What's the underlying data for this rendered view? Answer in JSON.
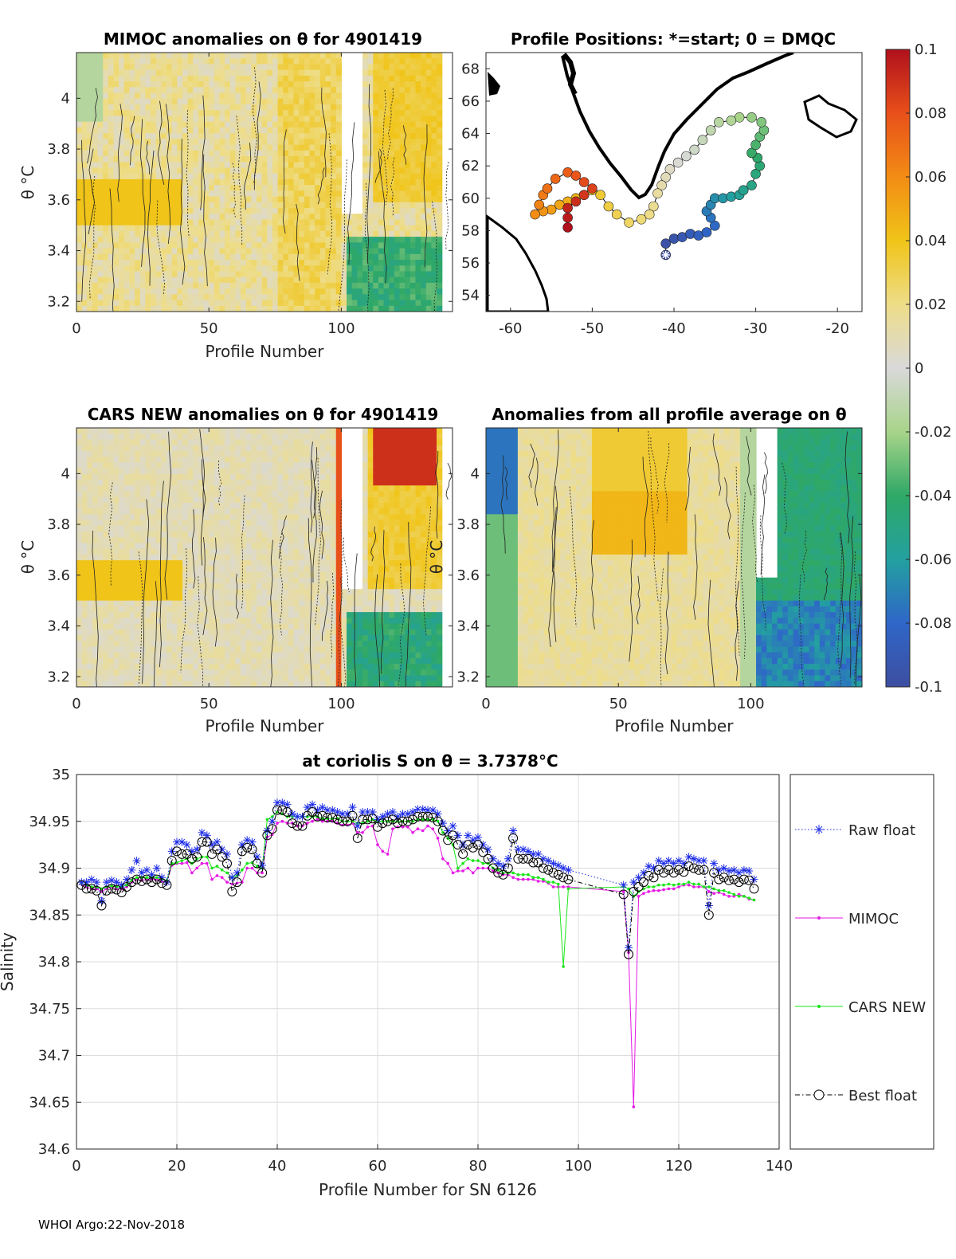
{
  "chart_data": [
    {
      "id": "mimoc",
      "type": "heatmap",
      "title": "MIMOC anomalies on θ  for 4901419",
      "xlabel": "Profile Number",
      "ylabel": "θ °C",
      "xlim": [
        0,
        142
      ],
      "ylim": [
        3.16,
        4.18
      ],
      "xticks": [
        "0",
        "50",
        "100"
      ],
      "yticks": [
        "3.2",
        "3.4",
        "3.6",
        "3.8",
        "4"
      ]
    },
    {
      "id": "positions",
      "type": "scatter",
      "title": "Profile Positions: *=start; 0 = DMQC",
      "xlim": [
        -63,
        -17
      ],
      "ylim": [
        53,
        69
      ],
      "xticks": [
        "-60",
        "-50",
        "-40",
        "-30",
        "-20"
      ],
      "yticks": [
        "54",
        "56",
        "58",
        "60",
        "62",
        "64",
        "66",
        "68"
      ],
      "start": [
        -41,
        56.5
      ]
    },
    {
      "id": "cars",
      "type": "heatmap",
      "title": "CARS NEW anomalies on θ for 4901419",
      "xlabel": "Profile Number",
      "ylabel": "θ °C",
      "xlim": [
        0,
        142
      ],
      "ylim": [
        3.16,
        4.18
      ],
      "xticks": [
        "0",
        "50",
        "100"
      ],
      "yticks": [
        "3.2",
        "3.4",
        "3.6",
        "3.8",
        "4"
      ]
    },
    {
      "id": "allavg",
      "type": "heatmap",
      "title": "Anomalies from all profile average on θ",
      "xlabel": "Profile Number",
      "ylabel": "θ °C",
      "xlim": [
        0,
        142
      ],
      "ylim": [
        3.16,
        4.18
      ],
      "xticks": [
        "0",
        "50",
        "100"
      ],
      "yticks": [
        "3.2",
        "3.4",
        "3.6",
        "3.8",
        "4"
      ]
    },
    {
      "id": "colorbar",
      "type": "colorbar",
      "range": [
        -0.1,
        0.1
      ],
      "ticks": [
        "0.1",
        "0.08",
        "0.06",
        "0.04",
        "0.02",
        "0",
        "-0.02",
        "-0.04",
        "-0.06",
        "-0.08",
        "-0.1"
      ]
    },
    {
      "id": "salinity",
      "type": "line",
      "title": "at coriolis S on θ = 3.7378°C",
      "xlabel": "Profile Number for SN 6126",
      "ylabel": "Salinity",
      "xlim": [
        0,
        140
      ],
      "ylim": [
        34.6,
        35
      ],
      "xticks": [
        "0",
        "20",
        "40",
        "60",
        "80",
        "100",
        "120",
        "140"
      ],
      "yticks": [
        "34.6",
        "34.65",
        "34.7",
        "34.75",
        "34.8",
        "34.85",
        "34.9",
        "34.95",
        "35"
      ],
      "x": [
        1,
        2,
        3,
        4,
        5,
        6,
        7,
        8,
        9,
        10,
        11,
        12,
        13,
        14,
        15,
        16,
        17,
        18,
        19,
        20,
        21,
        22,
        23,
        24,
        25,
        26,
        27,
        28,
        29,
        30,
        31,
        32,
        33,
        34,
        35,
        36,
        37,
        38,
        39,
        40,
        41,
        42,
        43,
        44,
        45,
        46,
        47,
        48,
        49,
        50,
        51,
        52,
        53,
        54,
        55,
        56,
        57,
        58,
        59,
        60,
        61,
        62,
        63,
        64,
        65,
        66,
        67,
        68,
        69,
        70,
        71,
        72,
        73,
        74,
        75,
        76,
        77,
        78,
        79,
        80,
        81,
        82,
        83,
        84,
        85,
        86,
        87,
        88,
        89,
        90,
        91,
        92,
        93,
        94,
        95,
        96,
        97,
        98,
        109,
        110,
        111,
        112,
        113,
        114,
        115,
        116,
        117,
        118,
        119,
        120,
        121,
        122,
        123,
        124,
        125,
        126,
        127,
        128,
        129,
        130,
        131,
        132,
        133,
        134,
        135
      ],
      "series": [
        {
          "name": "Raw float",
          "color": "#1f2ee6",
          "marker": "star",
          "values": [
            34.885,
            34.885,
            34.888,
            34.885,
            34.865,
            34.885,
            34.887,
            34.885,
            34.882,
            34.888,
            34.898,
            34.908,
            34.895,
            34.898,
            34.893,
            34.9,
            34.89,
            34.885,
            34.918,
            34.928,
            34.928,
            34.925,
            34.918,
            34.92,
            34.938,
            34.935,
            34.925,
            34.928,
            34.92,
            34.915,
            34.89,
            34.895,
            34.925,
            34.93,
            34.928,
            34.912,
            34.903,
            34.94,
            34.95,
            34.97,
            34.97,
            34.968,
            34.958,
            34.955,
            34.955,
            34.965,
            34.968,
            34.962,
            34.965,
            34.962,
            34.962,
            34.96,
            34.958,
            34.958,
            34.965,
            34.945,
            34.96,
            34.96,
            34.96,
            34.952,
            34.955,
            34.958,
            34.96,
            34.955,
            34.958,
            34.958,
            34.96,
            34.963,
            34.963,
            34.962,
            34.962,
            34.958,
            34.948,
            34.94,
            34.945,
            34.935,
            34.925,
            34.935,
            34.93,
            34.933,
            34.925,
            34.92,
            34.91,
            34.905,
            34.902,
            34.91,
            34.94,
            34.92,
            34.92,
            34.918,
            34.915,
            34.915,
            34.91,
            34.908,
            34.905,
            34.903,
            34.9,
            34.898,
            34.882,
            34.815,
            34.885,
            34.89,
            34.895,
            34.902,
            34.9,
            34.908,
            34.905,
            34.908,
            34.905,
            34.908,
            34.905,
            34.912,
            34.91,
            34.908,
            34.908,
            34.86,
            34.905,
            34.898,
            34.9,
            34.897,
            34.898,
            34.895,
            34.898,
            34.897,
            34.888
          ]
        },
        {
          "name": "MIMOC",
          "color": "#e619e6",
          "marker": "dot",
          "values": [
            34.883,
            34.88,
            34.878,
            34.878,
            34.875,
            34.878,
            34.88,
            34.878,
            34.878,
            34.88,
            34.885,
            34.888,
            34.887,
            34.888,
            34.888,
            34.888,
            34.886,
            34.885,
            34.903,
            34.905,
            34.905,
            34.906,
            34.895,
            34.9,
            34.905,
            34.905,
            34.888,
            34.892,
            34.89,
            34.885,
            34.883,
            34.884,
            34.885,
            34.9,
            34.9,
            34.895,
            34.895,
            34.933,
            34.936,
            34.948,
            34.95,
            34.948,
            34.948,
            34.945,
            34.945,
            34.948,
            34.95,
            34.952,
            34.95,
            34.95,
            34.95,
            34.948,
            34.946,
            34.946,
            34.948,
            34.938,
            34.938,
            34.944,
            34.945,
            34.925,
            34.918,
            34.915,
            34.942,
            34.944,
            34.944,
            34.944,
            34.938,
            34.942,
            34.94,
            34.945,
            34.942,
            34.932,
            34.91,
            34.905,
            34.895,
            34.897,
            34.897,
            34.9,
            34.895,
            34.9,
            34.9,
            34.9,
            34.897,
            34.895,
            34.893,
            34.893,
            34.89,
            34.888,
            34.888,
            34.888,
            34.888,
            34.886,
            34.886,
            34.884,
            34.88,
            34.88,
            34.88,
            34.88,
            34.875,
            34.81,
            34.645,
            34.87,
            34.873,
            34.875,
            34.876,
            34.876,
            34.877,
            34.878,
            34.878,
            34.88,
            34.882,
            34.882,
            34.88,
            34.88,
            34.88,
            34.875,
            34.873,
            34.874,
            34.872,
            34.87,
            34.87,
            34.872,
            34.87,
            34.867,
            34.866
          ]
        },
        {
          "name": "CARS NEW",
          "color": "#19e619",
          "marker": "dot",
          "values": [
            34.884,
            34.882,
            34.88,
            34.88,
            34.878,
            34.88,
            34.881,
            34.88,
            34.88,
            34.882,
            34.887,
            34.89,
            34.89,
            34.89,
            34.89,
            34.89,
            34.888,
            34.887,
            34.905,
            34.906,
            34.908,
            34.91,
            34.905,
            34.91,
            34.912,
            34.912,
            34.9,
            34.902,
            34.898,
            34.895,
            34.89,
            34.892,
            34.898,
            34.905,
            34.906,
            34.902,
            34.9,
            34.952,
            34.955,
            34.96,
            34.958,
            34.955,
            34.955,
            34.955,
            34.955,
            34.955,
            34.955,
            34.955,
            34.953,
            34.953,
            34.953,
            34.953,
            34.95,
            34.95,
            34.95,
            34.948,
            34.948,
            34.95,
            34.952,
            34.95,
            34.95,
            34.95,
            34.95,
            34.95,
            34.95,
            34.95,
            34.95,
            34.952,
            34.952,
            34.952,
            34.952,
            34.95,
            34.938,
            34.932,
            34.925,
            34.9,
            34.905,
            34.91,
            34.908,
            34.908,
            34.905,
            34.905,
            34.9,
            34.898,
            34.895,
            34.895,
            34.895,
            34.893,
            34.893,
            34.893,
            34.89,
            34.89,
            34.888,
            34.885,
            34.885,
            34.883,
            34.795,
            34.878,
            34.88,
            34.878,
            34.87,
            34.875,
            34.878,
            34.88,
            34.88,
            34.882,
            34.882,
            34.883,
            34.882,
            34.883,
            34.883,
            34.885,
            34.883,
            34.883,
            34.88,
            34.88,
            34.878,
            34.876,
            34.876,
            34.874,
            34.872,
            34.87,
            34.87,
            34.868,
            34.866
          ]
        },
        {
          "name": "Best float",
          "color": "#000000",
          "marker": "circle",
          "values": [
            34.882,
            34.878,
            34.878,
            34.876,
            34.86,
            34.876,
            34.878,
            34.877,
            34.874,
            34.88,
            34.885,
            34.888,
            34.886,
            34.888,
            34.885,
            34.888,
            34.884,
            34.882,
            34.908,
            34.918,
            34.915,
            34.915,
            34.91,
            34.912,
            34.928,
            34.928,
            34.915,
            34.92,
            34.912,
            34.905,
            34.875,
            34.885,
            34.918,
            34.922,
            34.92,
            34.905,
            34.895,
            34.935,
            34.942,
            34.962,
            34.962,
            34.96,
            34.948,
            34.945,
            34.945,
            34.956,
            34.96,
            34.955,
            34.956,
            34.954,
            34.954,
            34.952,
            34.95,
            34.95,
            34.956,
            34.932,
            34.952,
            34.952,
            34.953,
            34.944,
            34.948,
            34.95,
            34.952,
            34.948,
            34.95,
            34.95,
            34.952,
            34.955,
            34.955,
            34.955,
            34.954,
            34.95,
            34.94,
            34.93,
            34.935,
            34.925,
            34.915,
            34.925,
            34.922,
            34.925,
            34.917,
            34.91,
            34.9,
            34.895,
            34.893,
            34.9,
            34.932,
            34.91,
            34.91,
            34.91,
            34.906,
            34.906,
            34.9,
            34.898,
            34.895,
            34.893,
            34.89,
            34.888,
            34.872,
            34.808,
            34.875,
            34.88,
            34.885,
            34.892,
            34.89,
            34.898,
            34.895,
            34.898,
            34.895,
            34.898,
            34.896,
            34.902,
            34.9,
            34.898,
            34.898,
            34.85,
            34.895,
            34.888,
            34.89,
            34.887,
            34.888,
            34.885,
            34.888,
            34.887,
            34.878
          ]
        }
      ]
    }
  ],
  "footer": "WHOI Argo:22-Nov-2018"
}
